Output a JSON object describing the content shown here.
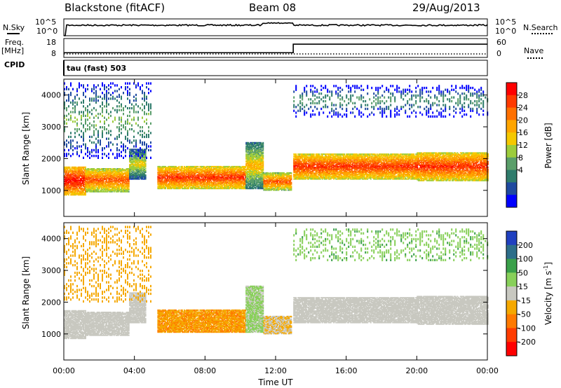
{
  "header": {
    "title": "Blackstone (fitACF)",
    "beam": "Beam 08",
    "date": "29/Aug/2013"
  },
  "top_panels": {
    "nsky_label": "N.Sky",
    "nsearch_label": "N.Search",
    "noise_ticks": [
      "10^5",
      "10^0"
    ],
    "freq_label_1": "Freq.",
    "freq_label_2": "[MHz]",
    "freq_ticks": [
      "18",
      "8"
    ],
    "nave_label": "Nave",
    "nave_ticks": [
      "60",
      "0"
    ],
    "cpid_label": "CPID",
    "cpid_value": "tau (fast) 503"
  },
  "power_colorbar": {
    "label": "Power [dB]",
    "ticks": [
      "28",
      "24",
      "20",
      "16",
      "12",
      "8",
      "4"
    ],
    "colors": [
      "#ff0000",
      "#ff3a00",
      "#ff7000",
      "#ffa500",
      "#f5c800",
      "#9ccc3c",
      "#5a9e6a",
      "#2f7c6c",
      "#1f4aa0",
      "#0000ff"
    ]
  },
  "velocity_colorbar": {
    "label": "Velocity [m s",
    "label_sup": "-1",
    "label_end": "]",
    "ticks": [
      "200",
      "100",
      "50",
      "15",
      "-15",
      "-50",
      "-100",
      "-200"
    ],
    "colors": [
      "#2040c0",
      "#2d6e8a",
      "#3aa04a",
      "#88d05a",
      "#c8c8c0",
      "#f5a800",
      "#ff7a00",
      "#ff3c00",
      "#ff0000"
    ]
  },
  "chart_data": {
    "type": "heatmap",
    "xlabel": "Time UT",
    "x_ticks": [
      "00:00",
      "04:00",
      "08:00",
      "12:00",
      "16:00",
      "20:00",
      "00:00"
    ],
    "xlim_hours": [
      0,
      24
    ],
    "ylabel": "Slant Range [km]",
    "y_ticks": [
      "4000",
      "3000",
      "2000",
      "1000"
    ],
    "ylim_km": [
      180,
      4500
    ],
    "freq_step_hour": 13.0,
    "freq_values_mhz": [
      10.5,
      15.0
    ],
    "scatter_bands": [
      {
        "t0": 0.0,
        "t1": 1.2,
        "r0": 850,
        "r1": 1750,
        "power": 24,
        "velocity": 0
      },
      {
        "t0": 1.2,
        "t1": 3.7,
        "r0": 950,
        "r1": 1700,
        "power": 20,
        "velocity": 0
      },
      {
        "t0": 3.7,
        "t1": 4.6,
        "r0": 1350,
        "r1": 2300,
        "power": 12,
        "velocity": 0
      },
      {
        "t0": 5.3,
        "t1": 10.3,
        "r0": 1050,
        "r1": 1750,
        "power": 22,
        "velocity": -45
      },
      {
        "t0": 10.3,
        "t1": 11.3,
        "r0": 1050,
        "r1": 2500,
        "power": 14,
        "velocity": 20
      },
      {
        "t0": 11.3,
        "t1": 12.9,
        "r0": 1000,
        "r1": 1550,
        "power": 20,
        "velocity": -15
      },
      {
        "t0": 13.0,
        "t1": 20.0,
        "r0": 1350,
        "r1": 2150,
        "power": 22,
        "velocity": 0
      },
      {
        "t0": 20.0,
        "t1": 24.0,
        "r0": 1300,
        "r1": 2200,
        "power": 22,
        "velocity": 0
      },
      {
        "t0": 13.0,
        "t1": 24.0,
        "r0": 3300,
        "r1": 4300,
        "power": 6,
        "velocity": 40
      },
      {
        "t0": 0.0,
        "t1": 5.0,
        "r0": 2000,
        "r1": 4400,
        "power": 8,
        "velocity": -30
      }
    ]
  }
}
